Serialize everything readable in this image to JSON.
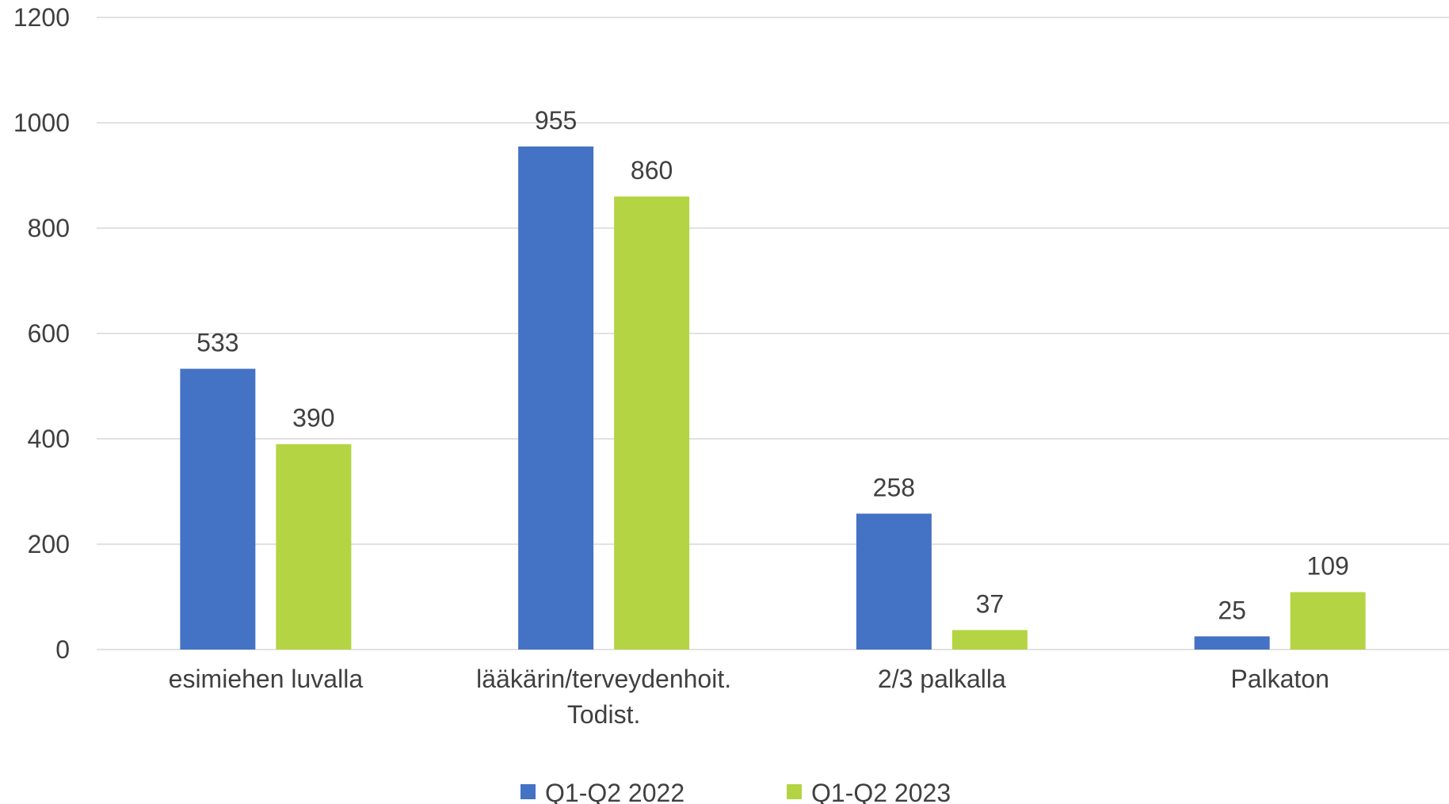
{
  "chart_data": {
    "type": "bar",
    "categories": [
      [
        "esimiehen luvalla"
      ],
      [
        "lääkärin/terveydenhoit.",
        "Todist."
      ],
      [
        "2/3 palkalla"
      ],
      [
        "Palkaton"
      ]
    ],
    "series": [
      {
        "name": "Q1-Q2 2022",
        "color": "#4472C4",
        "values": [
          533,
          955,
          258,
          25
        ]
      },
      {
        "name": "Q1-Q2 2023",
        "color": "#B5D443",
        "values": [
          390,
          860,
          37,
          109
        ]
      }
    ],
    "ylim": [
      0,
      1200
    ],
    "yticks": [
      0,
      200,
      400,
      600,
      800,
      1000,
      1200
    ],
    "grid": true,
    "legend_position": "bottom",
    "data_labels": true
  }
}
